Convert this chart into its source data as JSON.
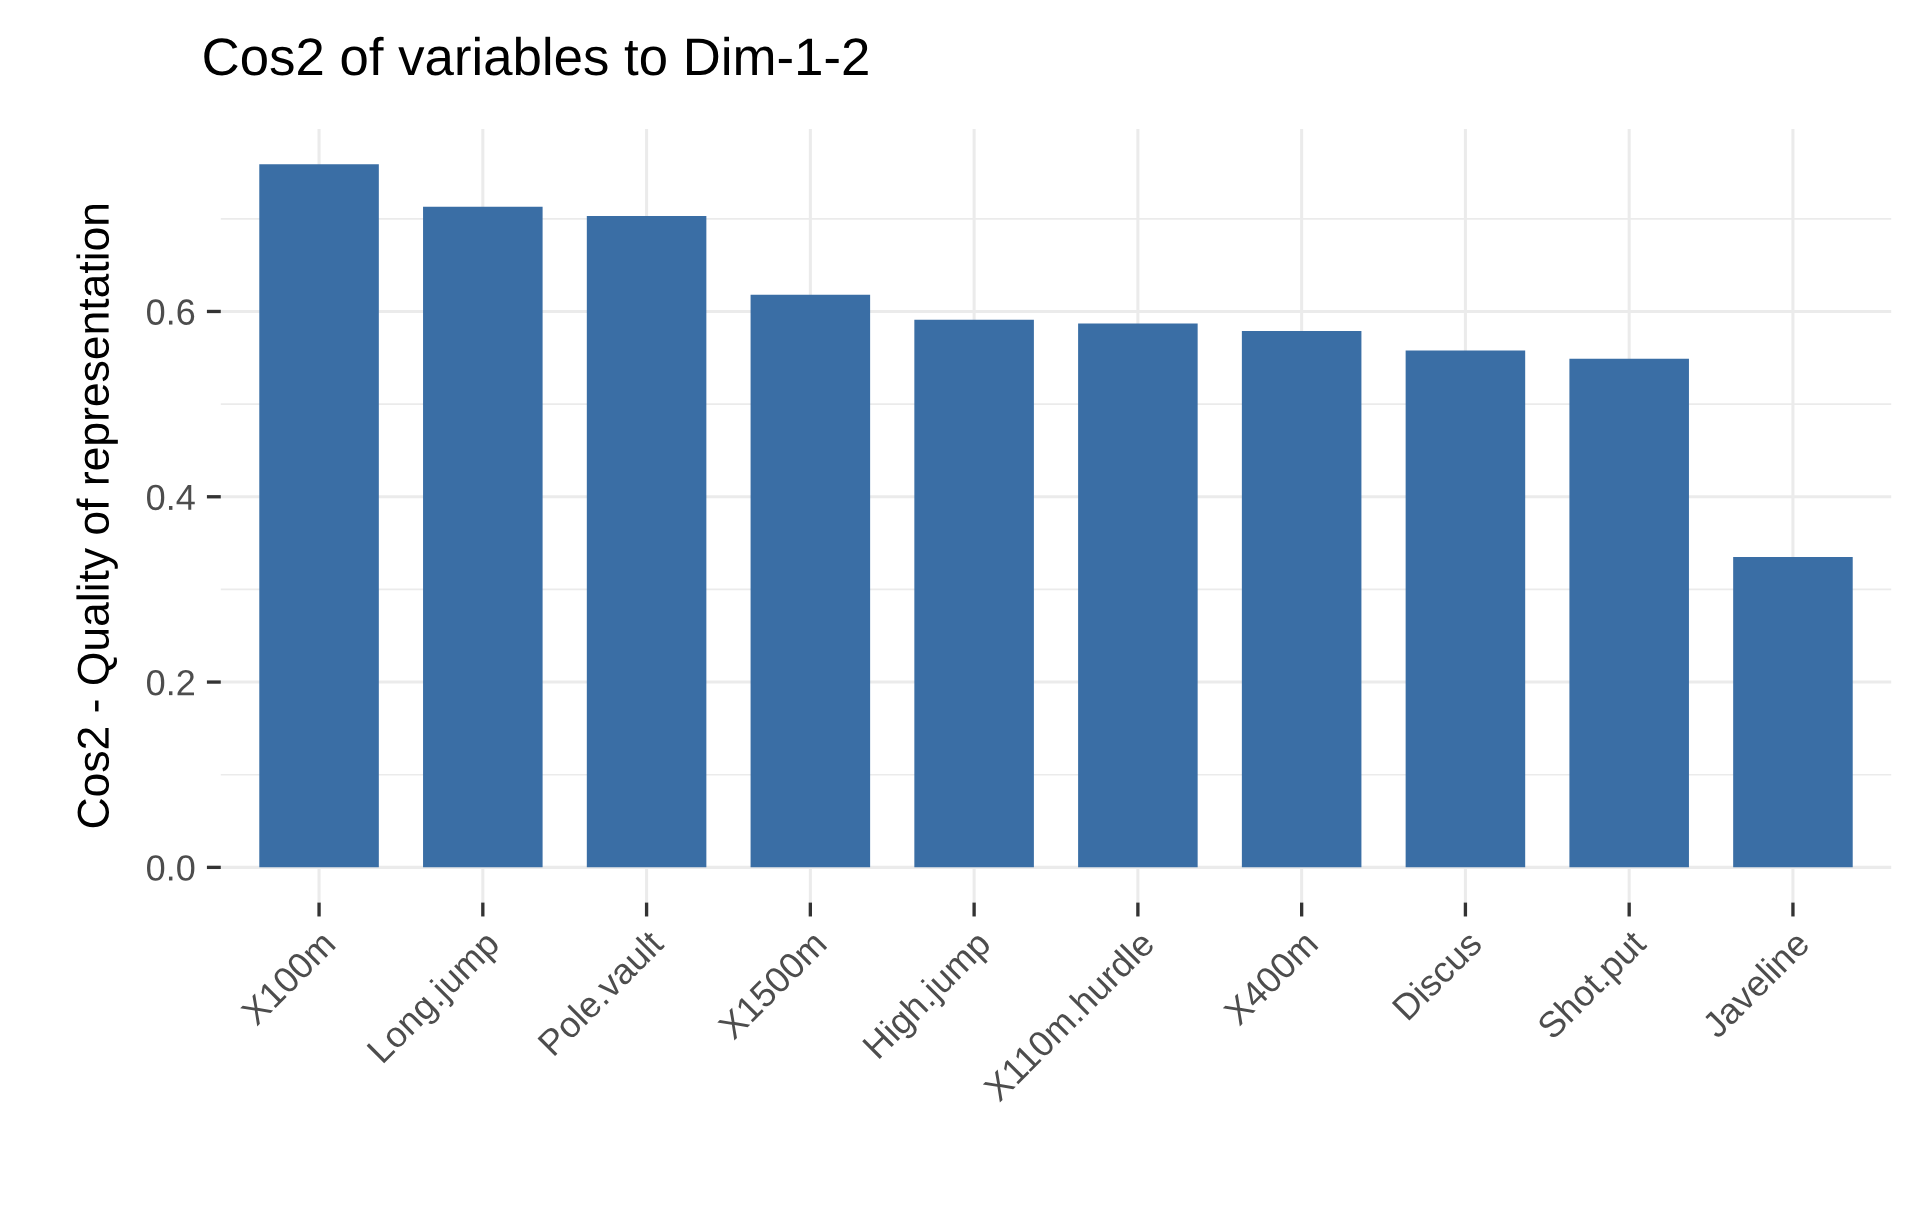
{
  "chart_data": {
    "type": "bar",
    "title": "Cos2 of variables to Dim-1-2",
    "ylabel": "Cos2 - Quality of representation",
    "categories": [
      "X100m",
      "Long.jump",
      "Pole.vault",
      "X1500m",
      "High.jump",
      "X110m.hurdle",
      "X400m",
      "Discus",
      "Shot.put",
      "Javeline"
    ],
    "values": [
      0.759,
      0.713,
      0.703,
      0.618,
      0.591,
      0.587,
      0.579,
      0.558,
      0.549,
      0.335
    ],
    "color": "#3a6ea5",
    "ylim": [
      -0.038,
      0.797
    ],
    "yticks": [
      {
        "value": 0,
        "label": "0.0"
      },
      {
        "value": 0.2,
        "label": "0.2"
      },
      {
        "value": 0.4,
        "label": "0.4"
      },
      {
        "value": 0.6,
        "label": "0.6"
      }
    ],
    "grid": true
  }
}
